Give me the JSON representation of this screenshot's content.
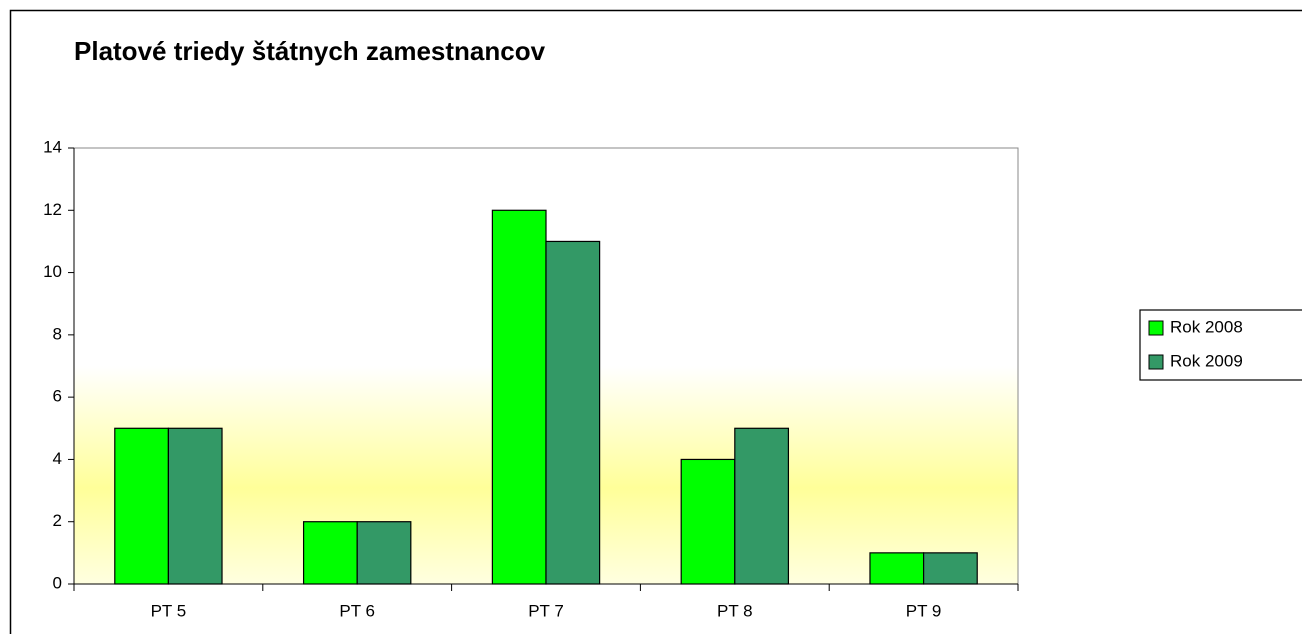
{
  "chart_data": {
    "type": "bar",
    "title": "Platové triedy štátnych zamestnancov",
    "categories": [
      "PT 5",
      "PT 6",
      "PT 7",
      "PT 8",
      "PT 9"
    ],
    "series": [
      {
        "name": "Rok 2008",
        "color": "#00ff00",
        "values": [
          5,
          2,
          12,
          4,
          1
        ]
      },
      {
        "name": "Rok 2009",
        "color": "#339966",
        "values": [
          5,
          2,
          11,
          5,
          1
        ]
      }
    ],
    "ylim": [
      0,
      14
    ],
    "yticks": [
      0,
      2,
      4,
      6,
      8,
      10,
      12,
      14
    ],
    "grid": false,
    "legend": "right"
  }
}
